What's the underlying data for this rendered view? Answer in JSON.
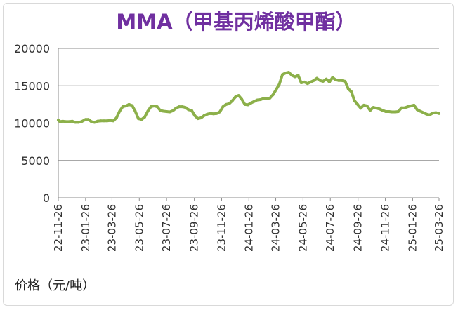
{
  "chart_data": {
    "type": "line",
    "title": "MMA（甲基丙烯酸甲酯）",
    "unit_label": "价格（元/吨）",
    "ylim": [
      0,
      20000
    ],
    "y_ticks": [
      "0",
      "5000",
      "10000",
      "15000",
      "20000"
    ],
    "x_tick_labels": [
      "22-11-26",
      "23-01-26",
      "23-03-26",
      "23-05-26",
      "23-07-26",
      "23-09-26",
      "23-11-26",
      "24-01-26",
      "24-03-26",
      "24-05-26",
      "24-07-26",
      "24-09-26",
      "24-11-26",
      "25-01-26",
      "25-03-26"
    ],
    "grid": true,
    "legend": "none",
    "line_color": "#8cb04a",
    "series": [
      {
        "x": [
          "22-11-26",
          "22-11-30",
          "22-12-06",
          "22-12-13",
          "22-12-20",
          "22-12-27",
          "23-01-03",
          "23-01-10",
          "23-01-17",
          "23-01-26",
          "23-02-01",
          "23-02-08",
          "23-02-15",
          "23-02-22",
          "23-03-01",
          "23-03-08",
          "23-03-15",
          "23-03-22",
          "23-03-29",
          "23-04-05",
          "23-04-12",
          "23-04-19",
          "23-04-26",
          "23-05-03",
          "23-05-10",
          "23-05-17",
          "23-05-24",
          "23-05-31",
          "23-06-07",
          "23-06-14",
          "23-06-21",
          "23-06-28",
          "23-07-05",
          "23-07-12",
          "23-07-19",
          "23-07-26",
          "23-08-02",
          "23-08-09",
          "23-08-16",
          "23-08-23",
          "23-08-30",
          "23-09-06",
          "23-09-13",
          "23-09-20",
          "23-09-27",
          "23-10-04",
          "23-10-11",
          "23-10-18",
          "23-10-25",
          "23-11-01",
          "23-11-08",
          "23-11-15",
          "23-11-22",
          "23-11-29",
          "23-12-06",
          "23-12-13",
          "23-12-20",
          "23-12-27",
          "24-01-03",
          "24-01-10",
          "24-01-17",
          "24-01-24",
          "24-01-31",
          "24-02-07",
          "24-02-14",
          "24-02-21",
          "24-02-28",
          "24-03-06",
          "24-03-13",
          "24-03-20",
          "24-03-27",
          "24-04-03",
          "24-04-10",
          "24-04-17",
          "24-04-24",
          "24-05-01",
          "24-05-08",
          "24-05-15",
          "24-05-22",
          "24-05-29",
          "24-06-05",
          "24-06-12",
          "24-06-19",
          "24-06-26",
          "24-07-03",
          "24-07-10",
          "24-07-17",
          "24-07-24",
          "24-07-31",
          "24-08-07",
          "24-08-14",
          "24-08-21",
          "24-08-28",
          "24-09-04",
          "24-09-11",
          "24-09-18",
          "24-09-25",
          "24-10-02",
          "24-10-09",
          "24-10-16",
          "24-10-23",
          "24-10-30",
          "24-11-06",
          "24-11-13",
          "24-11-20",
          "24-11-27",
          "24-12-04",
          "24-12-11",
          "24-12-18",
          "24-12-25",
          "25-01-01",
          "25-01-08",
          "25-01-15",
          "25-01-22",
          "25-01-29",
          "25-02-05",
          "25-02-12",
          "25-02-19",
          "25-02-26",
          "25-03-05",
          "25-03-12",
          "25-03-19",
          "25-03-26"
        ],
        "values": [
          10400,
          10200,
          10250,
          10200,
          10200,
          10250,
          10100,
          10100,
          10200,
          10500,
          10500,
          10200,
          10100,
          10250,
          10300,
          10300,
          10300,
          10350,
          10300,
          10700,
          11600,
          12200,
          12300,
          12500,
          12350,
          11600,
          10600,
          10500,
          10800,
          11600,
          12200,
          12300,
          12200,
          11700,
          11600,
          11550,
          11500,
          11650,
          12000,
          12200,
          12200,
          12100,
          11800,
          11700,
          11000,
          10600,
          10700,
          11000,
          11200,
          11300,
          11250,
          11300,
          11500,
          12200,
          12500,
          12600,
          13000,
          13500,
          13700,
          13200,
          12500,
          12450,
          12700,
          12900,
          13100,
          13150,
          13300,
          13300,
          13350,
          13800,
          14500,
          15200,
          16500,
          16700,
          16800,
          16400,
          16200,
          16400,
          15400,
          15500,
          15300,
          15500,
          15700,
          16000,
          15700,
          15600,
          15900,
          15500,
          16100,
          15800,
          15700,
          15700,
          15600,
          14600,
          14200,
          13000,
          12500,
          12000,
          12400,
          12300,
          11700,
          12100,
          12000,
          11900,
          11700,
          11550,
          11550,
          11500,
          11500,
          11550,
          12050,
          12050,
          12200,
          12300,
          12400,
          11800,
          11600,
          11400,
          11200,
          11100,
          11350,
          11400,
          11300
        ]
      }
    ]
  }
}
